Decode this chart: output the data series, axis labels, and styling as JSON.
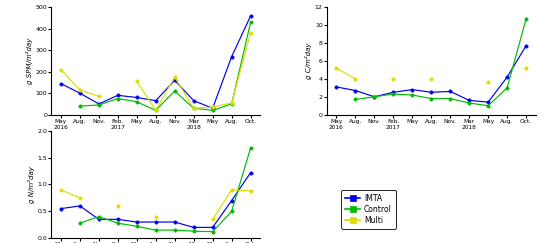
{
  "x_ticks": [
    0,
    1,
    2,
    3,
    4,
    5,
    6,
    7,
    8,
    9,
    10
  ],
  "x_month_labels": [
    "May",
    "Aug.",
    "Nov.",
    "Feb.",
    "May",
    "Aug.",
    "Nov.",
    "Mar",
    "May",
    "Aug.",
    "Oct."
  ],
  "x_year_labels": [
    "2016",
    "",
    "",
    "2017",
    "",
    "",
    "",
    "2018",
    "",
    "",
    ""
  ],
  "spm": {
    "IMTA": [
      145,
      100,
      50,
      90,
      80,
      65,
      160,
      65,
      30,
      270,
      460
    ],
    "Control": [
      null,
      40,
      45,
      75,
      60,
      20,
      110,
      30,
      20,
      50,
      430
    ],
    "Multi": [
      210,
      115,
      85,
      null,
      155,
      20,
      175,
      30,
      35,
      55,
      380
    ]
  },
  "carbon": {
    "IMTA": [
      3.1,
      2.7,
      2.0,
      2.5,
      2.8,
      2.5,
      2.6,
      1.6,
      1.4,
      4.2,
      7.7
    ],
    "Control": [
      null,
      1.7,
      2.0,
      2.3,
      2.2,
      1.8,
      1.8,
      1.3,
      1.0,
      3.0,
      10.7
    ],
    "Multi": [
      5.2,
      4.0,
      null,
      4.0,
      null,
      4.0,
      null,
      null,
      3.7,
      null,
      5.2
    ]
  },
  "nitrogen": {
    "IMTA": [
      0.55,
      0.6,
      0.35,
      0.35,
      0.3,
      0.3,
      0.3,
      0.2,
      0.2,
      0.7,
      1.22
    ],
    "Control": [
      null,
      0.28,
      0.4,
      0.28,
      0.22,
      0.15,
      0.15,
      0.13,
      0.12,
      0.5,
      1.68
    ],
    "Multi": [
      0.9,
      0.75,
      null,
      0.6,
      null,
      0.4,
      null,
      null,
      0.35,
      0.9,
      0.88
    ]
  },
  "colors": {
    "IMTA": "#0000ee",
    "Control": "#00bb00",
    "Multi": "#dddd00"
  },
  "spm_ylim": [
    0,
    500
  ],
  "spm_yticks": [
    0,
    100,
    200,
    300,
    400,
    500
  ],
  "carbon_ylim": [
    0,
    12
  ],
  "carbon_yticks": [
    0,
    2,
    4,
    6,
    8,
    10,
    12
  ],
  "nitrogen_ylim": [
    0.0,
    2.0
  ],
  "nitrogen_yticks": [
    0.0,
    0.5,
    1.0,
    1.5,
    2.0
  ],
  "spm_ylabel": "g SPM/m²day",
  "carbon_ylabel": "g C/m²day",
  "nitrogen_ylabel": "g N/m²day",
  "legend_labels": [
    "IMTA",
    "Control",
    "Multi"
  ]
}
